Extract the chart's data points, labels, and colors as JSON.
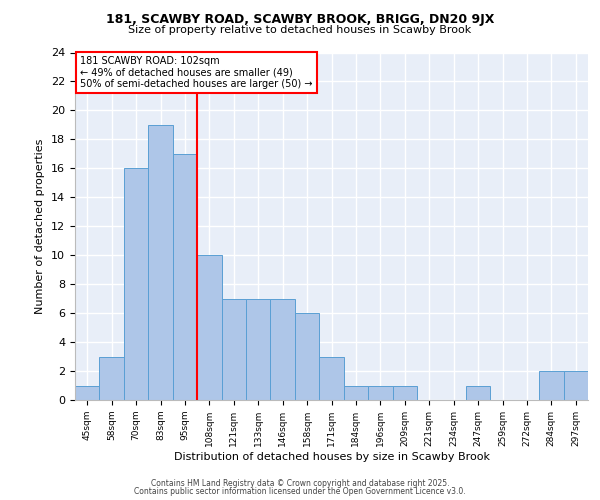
{
  "title1": "181, SCAWBY ROAD, SCAWBY BROOK, BRIGG, DN20 9JX",
  "title2": "Size of property relative to detached houses in Scawby Brook",
  "xlabel": "Distribution of detached houses by size in Scawby Brook",
  "ylabel": "Number of detached properties",
  "bin_labels": [
    "45sqm",
    "58sqm",
    "70sqm",
    "83sqm",
    "95sqm",
    "108sqm",
    "121sqm",
    "133sqm",
    "146sqm",
    "158sqm",
    "171sqm",
    "184sqm",
    "196sqm",
    "209sqm",
    "221sqm",
    "234sqm",
    "247sqm",
    "259sqm",
    "272sqm",
    "284sqm",
    "297sqm"
  ],
  "bin_counts": [
    1,
    3,
    16,
    19,
    17,
    10,
    7,
    7,
    7,
    6,
    3,
    1,
    1,
    1,
    0,
    0,
    1,
    0,
    0,
    2,
    2
  ],
  "bar_color": "#aec6e8",
  "bar_edge_color": "#5a9fd4",
  "vline_x": 5,
  "vline_color": "red",
  "annotation_text": "181 SCAWBY ROAD: 102sqm\n← 49% of detached houses are smaller (49)\n50% of semi-detached houses are larger (50) →",
  "annotation_box_color": "white",
  "annotation_box_edge_color": "red",
  "footnote1": "Contains HM Land Registry data © Crown copyright and database right 2025.",
  "footnote2": "Contains public sector information licensed under the Open Government Licence v3.0.",
  "ylim": [
    0,
    24
  ],
  "yticks": [
    0,
    2,
    4,
    6,
    8,
    10,
    12,
    14,
    16,
    18,
    20,
    22,
    24
  ],
  "background_color": "#e8eef8",
  "grid_color": "white",
  "fig_width": 6.0,
  "fig_height": 5.0,
  "dpi": 100
}
